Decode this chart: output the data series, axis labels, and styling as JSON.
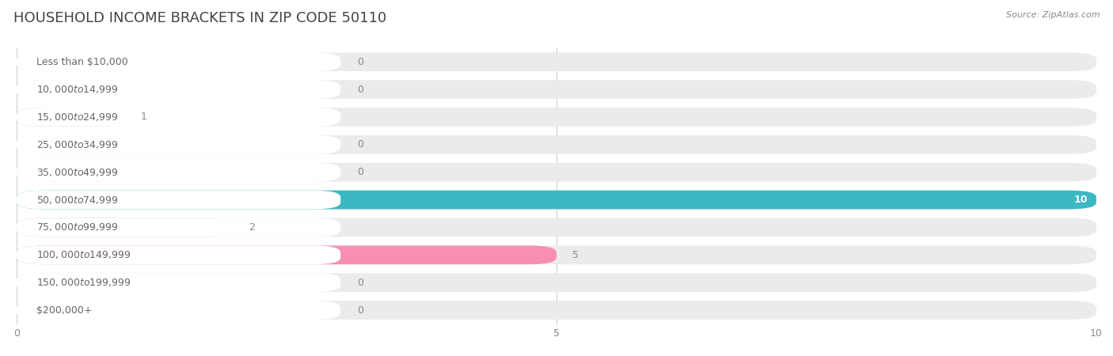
{
  "title": "HOUSEHOLD INCOME BRACKETS IN ZIP CODE 50110",
  "source": "Source: ZipAtlas.com",
  "categories": [
    "Less than $10,000",
    "$10,000 to $14,999",
    "$15,000 to $24,999",
    "$25,000 to $34,999",
    "$35,000 to $49,999",
    "$50,000 to $74,999",
    "$75,000 to $99,999",
    "$100,000 to $149,999",
    "$150,000 to $199,999",
    "$200,000+"
  ],
  "values": [
    0,
    0,
    1,
    0,
    0,
    10,
    2,
    5,
    0,
    0
  ],
  "bar_colors": [
    "#F48FB1",
    "#FFCC99",
    "#F4A99A",
    "#A8C4E0",
    "#C9B3D9",
    "#3CB8C2",
    "#C3C0E8",
    "#F78FB1",
    "#FFCC99",
    "#F4A99A"
  ],
  "xlim": [
    0,
    10
  ],
  "xticks": [
    0,
    5,
    10
  ],
  "title_fontsize": 13,
  "label_fontsize": 9,
  "value_fontsize": 9,
  "source_fontsize": 8,
  "background_color": "#FFFFFF",
  "row_bg_color": "#EBEBEB",
  "label_bg_color": "#FFFFFF",
  "value_color_dark": "#888888",
  "value_color_light": "#FFFFFF",
  "grid_color": "#CCCCCC",
  "label_color": "#666666",
  "title_color": "#444444",
  "source_color": "#888888"
}
